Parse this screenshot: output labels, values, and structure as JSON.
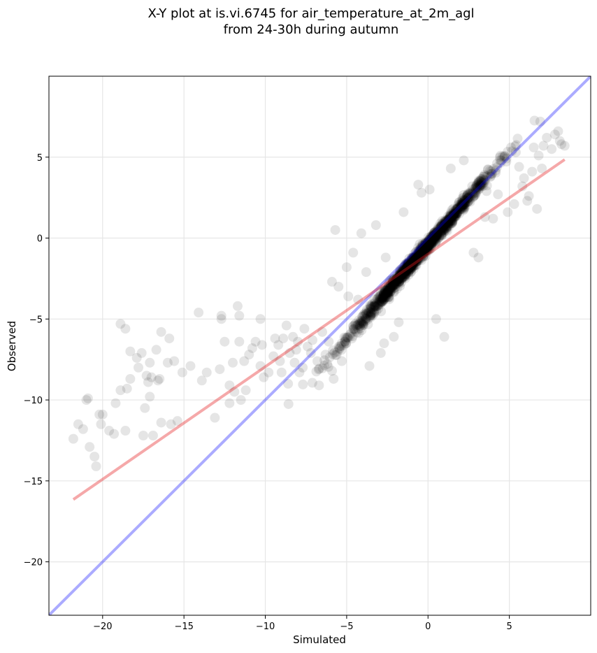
{
  "chart_data": {
    "type": "scatter",
    "title_line1": "X-Y plot at is.vi.6745 for air_temperature_at_2m_agl",
    "title_line2": "from 24-30h during autumn",
    "xlabel": "Simulated",
    "ylabel": "Observed",
    "xlim": [
      -23.3,
      10
    ],
    "ylim": [
      -23.3,
      10
    ],
    "xticks": [
      -20,
      -15,
      -10,
      -5,
      0,
      5
    ],
    "yticks": [
      -20,
      -15,
      -10,
      -5,
      0,
      5
    ],
    "grid": true,
    "point_color": "#000000",
    "point_alpha": 0.1,
    "reference_line": {
      "name": "1:1",
      "color": "#0000ff",
      "alpha": 0.33,
      "from": [
        -23.3,
        -23.3
      ],
      "to": [
        10,
        10
      ]
    },
    "fit_line": {
      "name": "regression",
      "color": "#e41a1c",
      "alpha": 0.38,
      "from": [
        -21.8,
        -16.15
      ],
      "to": [
        8.4,
        4.85
      ]
    },
    "cluster_center": [
      -0.5,
      -1.0
    ],
    "cluster_count": 1300,
    "tail_points": [
      [
        -21.8,
        -12.4
      ],
      [
        -21.5,
        -11.5
      ],
      [
        -21.2,
        -11.8
      ],
      [
        -21.0,
        -10.0
      ],
      [
        -20.9,
        -9.9
      ],
      [
        -20.8,
        -12.9
      ],
      [
        -20.5,
        -13.5
      ],
      [
        -20.4,
        -14.1
      ],
      [
        -20.2,
        -10.9
      ],
      [
        -20.0,
        -10.9
      ],
      [
        -20.1,
        -11.5
      ],
      [
        -19.6,
        -11.9
      ],
      [
        -19.3,
        -12.1
      ],
      [
        -19.2,
        -10.2
      ],
      [
        -18.9,
        -9.4
      ],
      [
        -18.9,
        -5.3
      ],
      [
        -18.6,
        -5.6
      ],
      [
        -18.6,
        -11.9
      ],
      [
        -18.5,
        -9.3
      ],
      [
        -18.3,
        -8.7
      ],
      [
        -18.3,
        -7.0
      ],
      [
        -17.9,
        -7.4
      ],
      [
        -17.8,
        -8.0
      ],
      [
        -17.6,
        -7.1
      ],
      [
        -17.5,
        -12.2
      ],
      [
        -17.4,
        -10.5
      ],
      [
        -17.3,
        -8.5
      ],
      [
        -17.2,
        -8.9
      ],
      [
        -17.1,
        -7.7
      ],
      [
        -17.1,
        -9.8
      ],
      [
        -17.0,
        -8.6
      ],
      [
        -16.9,
        -12.2
      ],
      [
        -16.7,
        -6.9
      ],
      [
        -16.6,
        -8.8
      ],
      [
        -16.5,
        -8.7
      ],
      [
        -16.4,
        -11.4
      ],
      [
        -16.4,
        -5.8
      ],
      [
        -16.0,
        -7.7
      ],
      [
        -15.9,
        -6.2
      ],
      [
        -15.8,
        -11.5
      ],
      [
        -15.6,
        -7.6
      ],
      [
        -15.4,
        -11.3
      ],
      [
        -15.1,
        -8.3
      ],
      [
        -14.6,
        -7.9
      ],
      [
        -14.1,
        -4.6
      ],
      [
        -13.9,
        -8.8
      ],
      [
        -13.6,
        -8.3
      ],
      [
        -13.1,
        -11.1
      ],
      [
        -12.8,
        -8.1
      ],
      [
        -12.7,
        -4.8
      ],
      [
        -12.7,
        -5.0
      ],
      [
        -12.5,
        -6.4
      ],
      [
        -12.2,
        -9.1
      ],
      [
        -12.2,
        -10.2
      ],
      [
        -12.0,
        -7.7
      ],
      [
        -11.9,
        -9.5
      ],
      [
        -11.7,
        -4.2
      ],
      [
        -11.6,
        -4.8
      ],
      [
        -11.6,
        -6.4
      ],
      [
        -11.5,
        -10.0
      ],
      [
        -11.3,
        -7.6
      ],
      [
        -11.2,
        -9.4
      ],
      [
        -11.0,
        -7.2
      ],
      [
        -10.8,
        -6.8
      ],
      [
        -10.6,
        -6.4
      ],
      [
        -10.3,
        -5.0
      ],
      [
        -10.3,
        -7.9
      ],
      [
        -10.2,
        -6.6
      ],
      [
        -10.1,
        -8.6
      ],
      [
        -9.8,
        -8.3
      ],
      [
        -9.5,
        -7.3
      ],
      [
        -9.4,
        -6.2
      ],
      [
        -9.2,
        -6.6
      ],
      [
        -9.1,
        -7.6
      ],
      [
        -9.0,
        -8.3
      ],
      [
        -8.9,
        -6.2
      ],
      [
        -8.7,
        -5.4
      ],
      [
        -8.6,
        -9.0
      ],
      [
        -8.5,
        -7.1
      ],
      [
        -8.3,
        -6.1
      ],
      [
        -8.2,
        -7.7
      ],
      [
        -8.1,
        -6.9
      ],
      [
        -8.0,
        -6.4
      ],
      [
        -7.9,
        -8.3
      ],
      [
        -7.7,
        -8.0
      ],
      [
        -7.6,
        -5.6
      ],
      [
        -7.4,
        -6.7
      ],
      [
        -7.2,
        -7.1
      ],
      [
        -7.1,
        -6.3
      ],
      [
        -6.8,
        -7.6
      ],
      [
        -6.7,
        -9.1
      ],
      [
        -6.5,
        -5.8
      ],
      [
        -6.3,
        -7.2
      ],
      [
        -6.1,
        -6.4
      ],
      [
        -5.9,
        -8.2
      ],
      [
        -5.8,
        -8.7
      ],
      [
        -5.7,
        0.5
      ],
      [
        -5.9,
        -2.7
      ],
      [
        -5.5,
        -3.0
      ],
      [
        -5.3,
        -7.6
      ],
      [
        -5.0,
        -1.8
      ],
      [
        -4.9,
        -3.6
      ],
      [
        -4.6,
        -0.9
      ],
      [
        -4.3,
        -3.8
      ],
      [
        -4.1,
        0.3
      ],
      [
        -3.8,
        -2.1
      ],
      [
        -3.6,
        -7.9
      ],
      [
        -3.2,
        0.8
      ],
      [
        -2.9,
        -7.1
      ],
      [
        -2.7,
        -6.5
      ],
      [
        -2.6,
        -1.2
      ],
      [
        -2.1,
        -6.1
      ],
      [
        -1.8,
        -5.2
      ],
      [
        -1.5,
        1.6
      ],
      [
        -0.6,
        3.3
      ],
      [
        -0.4,
        2.8
      ],
      [
        0.1,
        3.0
      ],
      [
        0.5,
        -5.0
      ],
      [
        1.0,
        -6.1
      ],
      [
        1.4,
        4.3
      ],
      [
        2.2,
        4.8
      ],
      [
        2.8,
        -0.9
      ],
      [
        3.1,
        -1.2
      ],
      [
        3.5,
        1.3
      ],
      [
        4.0,
        1.2
      ],
      [
        4.3,
        2.7
      ],
      [
        4.9,
        1.6
      ],
      [
        5.3,
        2.1
      ],
      [
        5.6,
        4.4
      ],
      [
        5.8,
        3.2
      ],
      [
        5.9,
        3.7
      ],
      [
        6.1,
        2.3
      ],
      [
        6.2,
        2.6
      ],
      [
        6.4,
        4.1
      ],
      [
        6.8,
        5.1
      ],
      [
        6.9,
        7.2
      ],
      [
        7.1,
        5.7
      ],
      [
        7.3,
        6.2
      ],
      [
        7.6,
        5.5
      ],
      [
        7.8,
        6.4
      ],
      [
        8.0,
        6.6
      ],
      [
        8.1,
        6.0
      ],
      [
        8.2,
        5.8
      ],
      [
        8.4,
        5.7
      ],
      [
        6.5,
        5.6
      ],
      [
        7.0,
        4.3
      ],
      [
        5.1,
        5.6
      ],
      [
        4.5,
        4.8
      ],
      [
        3.6,
        2.9
      ],
      [
        5.4,
        5.3
      ],
      [
        6.7,
        1.8
      ]
    ]
  }
}
